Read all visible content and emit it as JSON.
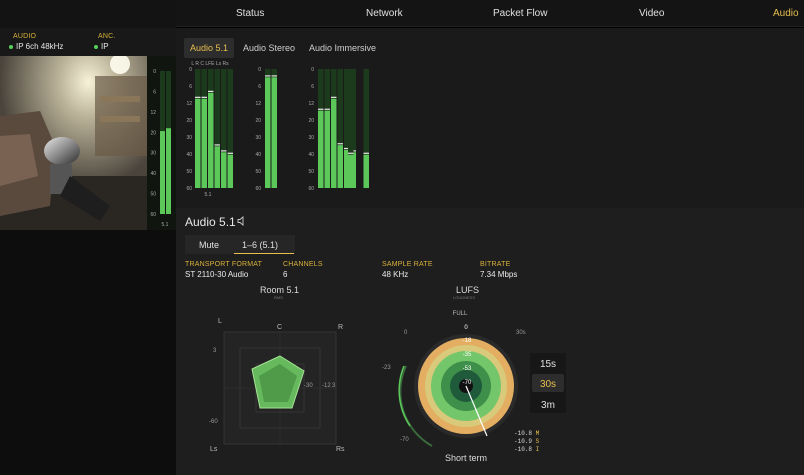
{
  "nav": {
    "tabs": [
      "Status",
      "Network",
      "Packet Flow",
      "Video",
      "Audio"
    ],
    "active": "Audio"
  },
  "signal": {
    "audio_label": "AUDIO",
    "audio_value": "IP 6ch 48kHz",
    "anc_label": "ANC.",
    "anc_value": "IP"
  },
  "left_meter": {
    "scale": [
      "0",
      "6",
      "12",
      "20",
      "30",
      "40",
      "50",
      "60"
    ],
    "footer": "5.1",
    "levels": [
      0.58,
      0.6
    ]
  },
  "subtabs": [
    "Audio 5.1",
    "Audio Stereo",
    "Audio Immersive"
  ],
  "active_subtab": "Audio 5.1",
  "meter_scale": [
    "0",
    "6",
    "12",
    "20",
    "30",
    "40",
    "50",
    "60"
  ],
  "meters": {
    "audio51": {
      "header": "L R C LFE Ls Rs",
      "footer": "5.1",
      "levels": [
        0.75,
        0.75,
        0.8,
        0.35,
        0.3,
        0.28
      ]
    },
    "stereo": {
      "levels": [
        0.93,
        0.93
      ]
    },
    "immersive": {
      "levels": [
        0.65,
        0.65,
        0.75,
        0.36,
        0.32,
        0.3,
        0.28,
        0.28
      ]
    }
  },
  "section": {
    "title": "Audio 5.1",
    "mute_label": "Mute",
    "channels_tab": "1–6",
    "channels_tab_suffix": "(5.1)"
  },
  "info": {
    "transport_label": "TRANSPORT FORMAT",
    "transport_value": "ST 2110-30 Audio",
    "channels_label": "CHANNELS",
    "channels_value": "6",
    "sample_label": "SAMPLE RATE",
    "sample_value": "48 KHz",
    "bitrate_label": "BITRATE",
    "bitrate_value": "7.34 Mbps"
  },
  "room": {
    "title": "Room 5.1",
    "subtitle": "RMS",
    "labels": {
      "L": "L",
      "C": "C",
      "R": "R",
      "Ls": "Ls",
      "Rs": "Rs"
    },
    "scale_marks": [
      "3",
      "-30",
      "-12",
      "3",
      "-60"
    ]
  },
  "lufs": {
    "title": "LUFS",
    "subtitle": "LOUDNESS",
    "full_label": "FULL",
    "ring_values": [
      "0",
      "-18",
      "-35",
      "-53",
      "-70"
    ],
    "outer_marks": [
      "0",
      "30s",
      "-23",
      "-70"
    ],
    "time_options": [
      "15s",
      "30s",
      "3m"
    ],
    "active_time": "30s",
    "caption": "Short term",
    "readouts": [
      {
        "value": "-10.8",
        "unit": "M"
      },
      {
        "value": "-10.9",
        "unit": "S"
      },
      {
        "value": "-10.8",
        "unit": "I"
      }
    ]
  },
  "colors": {
    "accent": "#e7bf4e",
    "meter_green": "#5cc85a",
    "meter_bg": "#1c3a1c",
    "lufs_orange": "#e3ae62",
    "lufs_green": "#74c66b"
  }
}
